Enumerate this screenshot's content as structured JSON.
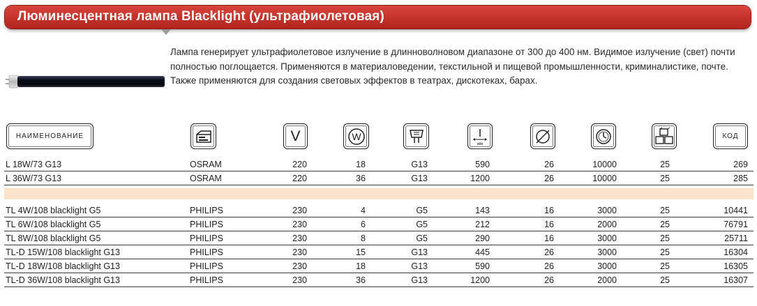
{
  "title": "Люминесцентная лампа Blacklight (ультрафиолетовая)",
  "description": "Лампа генерирует ультрафиолетовое излучение в длинноволновом диапазоне от 300 до 400 нм. Видимое излучение (свет) почти полностью поглощается. Применяются в материаловедении, текстильной и пищевой промышленности, криминалистике, почте. Также применяются для создания световых эффектов в театрах, дискотеках, барах.",
  "headers": {
    "name_label": "НАИМЕНОВАНИЕ",
    "code_label": "КОД",
    "voltage_icon_text": "V",
    "power_icon_text": "W",
    "length_icon_text": "мм",
    "icons": [
      "brand-icon",
      "voltage-icon",
      "power-icon",
      "base-icon",
      "length-icon",
      "diameter-icon",
      "lifetime-icon",
      "package-icon"
    ]
  },
  "groups": [
    {
      "rows": [
        {
          "name": "L 18W/73 G13",
          "brand": "OSRAM",
          "voltage": "220",
          "power": "18",
          "base": "G13",
          "length": "590",
          "diameter": "26",
          "lifetime": "10000",
          "pack": "25",
          "code": "269"
        },
        {
          "name": "L 36W/73 G13",
          "brand": "OSRAM",
          "voltage": "220",
          "power": "36",
          "base": "G13",
          "length": "1200",
          "diameter": "26",
          "lifetime": "10000",
          "pack": "25",
          "code": "285"
        }
      ]
    },
    {
      "rows": [
        {
          "name": "TL 4W/108 blacklight G5",
          "brand": "PHILIPS",
          "voltage": "230",
          "power": "4",
          "base": "G5",
          "length": "143",
          "diameter": "16",
          "lifetime": "3000",
          "pack": "25",
          "code": "10441"
        },
        {
          "name": "TL 6W/108 blacklight G5",
          "brand": "PHILIPS",
          "voltage": "230",
          "power": "6",
          "base": "G5",
          "length": "212",
          "diameter": "16",
          "lifetime": "2000",
          "pack": "25",
          "code": "76791"
        },
        {
          "name": "TL 8W/108 blacklight G5",
          "brand": "PHILIPS",
          "voltage": "230",
          "power": "8",
          "base": "G5",
          "length": "290",
          "diameter": "16",
          "lifetime": "3000",
          "pack": "25",
          "code": "25711"
        },
        {
          "name": "TL-D 15W/108 blacklight G13",
          "brand": "PHILIPS",
          "voltage": "230",
          "power": "15",
          "base": "G13",
          "length": "445",
          "diameter": "26",
          "lifetime": "3000",
          "pack": "25",
          "code": "16304"
        },
        {
          "name": "TL-D 18W/108 blacklight G13",
          "brand": "PHILIPS",
          "voltage": "230",
          "power": "18",
          "base": "G13",
          "length": "590",
          "diameter": "26",
          "lifetime": "3000",
          "pack": "25",
          "code": "16305"
        },
        {
          "name": "TL-D 36W/108 blacklight G13",
          "brand": "PHILIPS",
          "voltage": "230",
          "power": "36",
          "base": "G13",
          "length": "1200",
          "diameter": "26",
          "lifetime": "2000",
          "pack": "25",
          "code": "16307"
        }
      ]
    }
  ],
  "colors": {
    "title_bar": "#c0302a",
    "separator": "#fbe4cc",
    "lamp_tube": "#0a0d1a"
  }
}
